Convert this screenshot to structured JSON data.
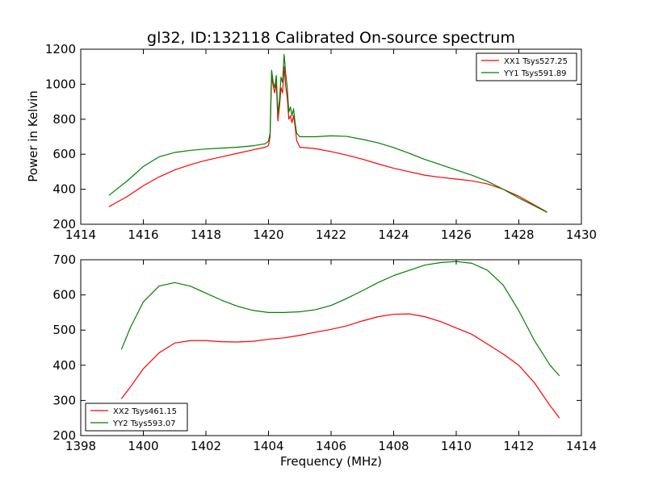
{
  "figure": {
    "title": "gl32, ID:132118 Calibrated On-source spectrum",
    "xlabel": "Frequency (MHz)",
    "ylabel": "Power in Kelvin"
  },
  "colors": {
    "xx": "#ff0000",
    "yy": "#008000",
    "frame": "#000000",
    "background": "#ffffff"
  },
  "chart_data": [
    {
      "type": "line",
      "title": "gl32, ID:132118 Calibrated On-source spectrum",
      "xlabel": "",
      "ylabel": "Power in Kelvin",
      "xlim": [
        1414,
        1430
      ],
      "ylim": [
        200,
        1200
      ],
      "xticks": [
        1414,
        1416,
        1418,
        1420,
        1422,
        1424,
        1426,
        1428,
        1430
      ],
      "yticks": [
        200,
        400,
        600,
        800,
        1000,
        1200
      ],
      "grid": false,
      "legend_position": "top-right",
      "series": [
        {
          "name": "XX1 Tsys527.25",
          "color": "#ff0000",
          "x": [
            1414.9,
            1415.5,
            1416,
            1416.5,
            1417,
            1417.5,
            1418,
            1418.5,
            1419,
            1419.5,
            1419.9,
            1420.0,
            1420.05,
            1420.1,
            1420.15,
            1420.2,
            1420.25,
            1420.3,
            1420.35,
            1420.4,
            1420.45,
            1420.5,
            1420.55,
            1420.6,
            1420.65,
            1420.7,
            1420.75,
            1420.8,
            1420.85,
            1420.9,
            1421.0,
            1421.5,
            1422,
            1422.5,
            1423,
            1423.5,
            1424,
            1424.5,
            1425,
            1425.5,
            1426,
            1426.5,
            1427,
            1427.5,
            1428,
            1428.5,
            1428.9
          ],
          "y": [
            300,
            360,
            420,
            470,
            510,
            540,
            565,
            585,
            605,
            625,
            640,
            650,
            700,
            1050,
            990,
            950,
            1010,
            790,
            870,
            980,
            950,
            1100,
            990,
            920,
            800,
            820,
            780,
            820,
            760,
            680,
            640,
            632,
            615,
            595,
            572,
            545,
            520,
            500,
            480,
            468,
            458,
            448,
            430,
            400,
            360,
            310,
            270
          ]
        },
        {
          "name": "YY1 Tsys591.89",
          "color": "#008000",
          "x": [
            1414.9,
            1415.5,
            1416,
            1416.5,
            1417,
            1417.5,
            1418,
            1418.5,
            1419,
            1419.5,
            1419.9,
            1420.0,
            1420.05,
            1420.1,
            1420.15,
            1420.2,
            1420.25,
            1420.3,
            1420.35,
            1420.4,
            1420.45,
            1420.5,
            1420.55,
            1420.6,
            1420.65,
            1420.7,
            1420.75,
            1420.8,
            1420.85,
            1420.9,
            1421.0,
            1421.5,
            1422,
            1422.5,
            1423,
            1423.5,
            1424,
            1424.5,
            1425,
            1425.5,
            1426,
            1426.5,
            1427,
            1427.5,
            1428,
            1428.5,
            1428.9
          ],
          "y": [
            365,
            450,
            530,
            585,
            610,
            622,
            630,
            635,
            640,
            648,
            660,
            675,
            720,
            1080,
            1010,
            980,
            1050,
            830,
            910,
            1040,
            1010,
            1170,
            1060,
            980,
            840,
            870,
            820,
            860,
            780,
            720,
            700,
            700,
            705,
            702,
            685,
            665,
            638,
            605,
            570,
            540,
            510,
            480,
            445,
            400,
            350,
            305,
            268
          ]
        }
      ]
    },
    {
      "type": "line",
      "title": "",
      "xlabel": "Frequency (MHz)",
      "ylabel": "",
      "xlim": [
        1398,
        1414
      ],
      "ylim": [
        200,
        700
      ],
      "xticks": [
        1398,
        1400,
        1402,
        1404,
        1406,
        1408,
        1410,
        1412,
        1414
      ],
      "yticks": [
        200,
        300,
        400,
        500,
        600,
        700
      ],
      "grid": false,
      "legend_position": "bottom-left",
      "series": [
        {
          "name": "XX2 Tsys461.15",
          "color": "#ff0000",
          "x": [
            1399.3,
            1399.6,
            1400,
            1400.5,
            1401,
            1401.5,
            1402,
            1402.5,
            1403,
            1403.5,
            1404,
            1404.5,
            1405,
            1405.5,
            1406,
            1406.5,
            1407,
            1407.5,
            1408,
            1408.5,
            1409,
            1409.5,
            1410,
            1410.5,
            1411,
            1411.5,
            1412,
            1412.5,
            1413,
            1413.3
          ],
          "y": [
            305,
            340,
            390,
            435,
            463,
            470,
            470,
            467,
            466,
            468,
            474,
            478,
            485,
            494,
            502,
            512,
            526,
            538,
            545,
            546,
            538,
            524,
            506,
            488,
            460,
            432,
            400,
            350,
            285,
            250
          ]
        },
        {
          "name": "YY2 Tsys593.07",
          "color": "#008000",
          "x": [
            1399.3,
            1399.6,
            1400,
            1400.5,
            1401,
            1401.5,
            1402,
            1402.5,
            1403,
            1403.5,
            1404,
            1404.5,
            1405,
            1405.5,
            1406,
            1406.5,
            1407,
            1407.5,
            1408,
            1408.5,
            1409,
            1409.5,
            1410,
            1410.5,
            1411,
            1411.5,
            1412,
            1412.5,
            1413,
            1413.3
          ],
          "y": [
            445,
            510,
            580,
            625,
            635,
            625,
            605,
            585,
            568,
            556,
            550,
            550,
            552,
            558,
            570,
            590,
            612,
            635,
            655,
            670,
            685,
            692,
            695,
            690,
            670,
            628,
            555,
            470,
            400,
            370
          ]
        }
      ]
    }
  ]
}
